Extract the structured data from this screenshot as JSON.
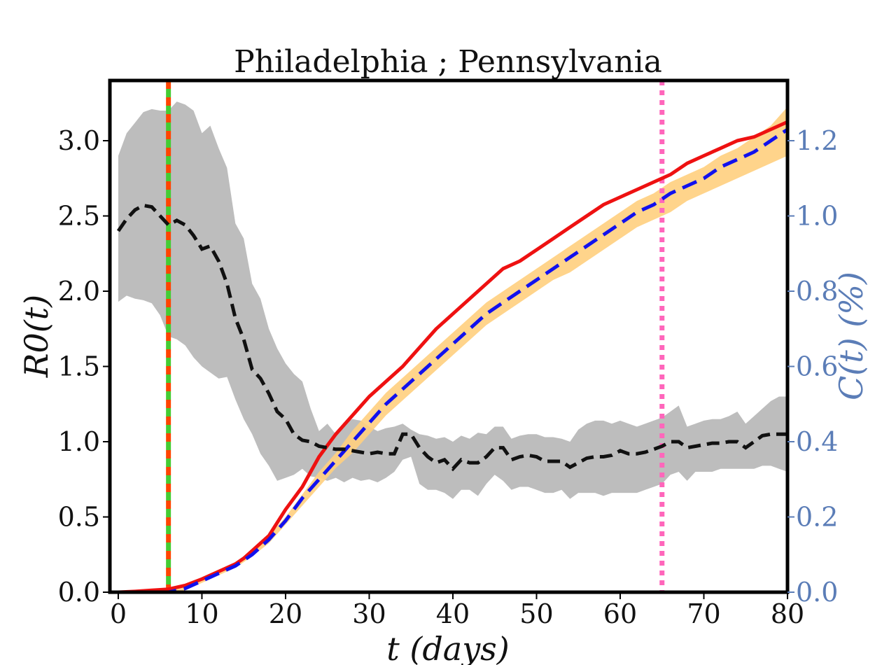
{
  "chart_data": {
    "type": "line",
    "title": "Philadelphia ; Pennsylvania",
    "xlabel": "t (days)",
    "ylabel_left": "R0(t)",
    "ylabel_right": "C(t) (%)",
    "xlim": [
      -1,
      80
    ],
    "ylim_left": [
      0,
      3.4
    ],
    "ylim_right": [
      0,
      1.36
    ],
    "x_ticks": [
      "0",
      "10",
      "20",
      "30",
      "40",
      "50",
      "60",
      "70",
      "80"
    ],
    "y_ticks_left": [
      "0.0",
      "0.5",
      "1.0",
      "1.5",
      "2.0",
      "2.5",
      "3.0"
    ],
    "y_ticks_right": [
      "0.0",
      "0.2",
      "0.4",
      "0.6",
      "0.8",
      "1.0",
      "1.2"
    ],
    "grid": false,
    "vertical_lines": [
      {
        "x": 6,
        "colors": [
          "#ff4400",
          "#44cc33"
        ],
        "style": "dotted"
      },
      {
        "x": 65,
        "colors": [
          "#ff66bb"
        ],
        "style": "dotted"
      }
    ],
    "series": [
      {
        "axis": "left",
        "style": "dashed",
        "color": "#111111",
        "band_color": "#bdbdbd",
        "x": [
          0,
          1,
          2,
          3,
          4,
          5,
          6,
          7,
          8,
          9,
          10,
          11,
          12,
          13,
          14,
          15,
          16,
          17,
          18,
          19,
          20,
          21,
          22,
          23,
          24,
          25,
          26,
          27,
          28,
          29,
          30,
          31,
          32,
          33,
          34,
          35,
          36,
          37,
          38,
          39,
          40,
          41,
          42,
          43,
          44,
          45,
          46,
          47,
          48,
          49,
          50,
          51,
          52,
          53,
          54,
          55,
          56,
          57,
          58,
          59,
          60,
          61,
          62,
          63,
          64,
          65,
          66,
          67,
          68,
          69,
          70,
          71,
          72,
          73,
          74,
          75,
          76,
          77,
          78,
          79,
          80
        ],
        "y": [
          2.4,
          2.48,
          2.54,
          2.57,
          2.56,
          2.5,
          2.44,
          2.47,
          2.44,
          2.37,
          2.28,
          2.3,
          2.2,
          2.05,
          1.82,
          1.68,
          1.48,
          1.42,
          1.32,
          1.2,
          1.15,
          1.05,
          1.01,
          1.0,
          0.97,
          0.96,
          0.95,
          0.95,
          0.94,
          0.93,
          0.92,
          0.93,
          0.92,
          0.92,
          1.05,
          1.05,
          0.96,
          0.9,
          0.86,
          0.88,
          0.82,
          0.88,
          0.86,
          0.86,
          0.9,
          0.96,
          0.96,
          0.88,
          0.9,
          0.91,
          0.9,
          0.87,
          0.87,
          0.87,
          0.83,
          0.86,
          0.89,
          0.9,
          0.9,
          0.91,
          0.94,
          0.92,
          0.92,
          0.93,
          0.95,
          0.97,
          1.0,
          1.0,
          0.96,
          0.97,
          0.98,
          0.99,
          0.99,
          1.0,
          1.0,
          0.96,
          1.0,
          1.04,
          1.05,
          1.05,
          1.05
        ],
        "upper": [
          2.9,
          3.05,
          3.12,
          3.19,
          3.21,
          3.2,
          3.2,
          3.26,
          3.24,
          3.2,
          3.05,
          3.1,
          2.95,
          2.82,
          2.45,
          2.35,
          2.05,
          1.95,
          1.75,
          1.62,
          1.52,
          1.45,
          1.4,
          1.22,
          1.07,
          1.12,
          1.05,
          1.12,
          1.15,
          1.14,
          1.1,
          1.07,
          1.09,
          1.1,
          1.12,
          1.08,
          1.05,
          1.04,
          1.02,
          1.03,
          1.0,
          1.04,
          1.02,
          1.06,
          1.05,
          1.1,
          1.1,
          1.02,
          1.04,
          1.05,
          1.05,
          1.03,
          1.03,
          1.02,
          1.0,
          1.08,
          1.12,
          1.14,
          1.14,
          1.12,
          1.14,
          1.12,
          1.1,
          1.12,
          1.14,
          1.16,
          1.2,
          1.24,
          1.1,
          1.12,
          1.14,
          1.15,
          1.15,
          1.17,
          1.2,
          1.12,
          1.17,
          1.22,
          1.27,
          1.3,
          1.3
        ],
        "lower": [
          1.93,
          1.97,
          1.95,
          1.94,
          1.92,
          1.84,
          1.7,
          1.68,
          1.64,
          1.56,
          1.5,
          1.46,
          1.42,
          1.43,
          1.28,
          1.15,
          1.05,
          0.92,
          0.84,
          0.74,
          0.76,
          0.78,
          0.82,
          0.77,
          0.76,
          0.74,
          0.76,
          0.73,
          0.76,
          0.74,
          0.75,
          0.73,
          0.76,
          0.8,
          0.88,
          0.9,
          0.72,
          0.68,
          0.68,
          0.66,
          0.62,
          0.68,
          0.68,
          0.64,
          0.72,
          0.78,
          0.74,
          0.68,
          0.7,
          0.7,
          0.68,
          0.66,
          0.66,
          0.68,
          0.62,
          0.66,
          0.66,
          0.66,
          0.64,
          0.66,
          0.66,
          0.66,
          0.66,
          0.68,
          0.7,
          0.72,
          0.78,
          0.8,
          0.74,
          0.8,
          0.8,
          0.8,
          0.82,
          0.82,
          0.82,
          0.82,
          0.82,
          0.84,
          0.84,
          0.82,
          0.8
        ]
      },
      {
        "axis": "right",
        "style": "solid",
        "color": "#ee1111",
        "x": [
          0,
          2,
          4,
          6,
          8,
          10,
          12,
          14,
          15,
          16,
          17,
          18,
          20,
          22,
          24,
          25,
          26,
          28,
          30,
          32,
          34,
          36,
          38,
          40,
          42,
          44,
          46,
          48,
          50,
          52,
          54,
          56,
          58,
          60,
          62,
          64,
          66,
          68,
          70,
          72,
          74,
          76,
          78,
          80
        ],
        "y": [
          0.0,
          0.002,
          0.005,
          0.008,
          0.018,
          0.035,
          0.055,
          0.075,
          0.09,
          0.11,
          0.13,
          0.15,
          0.22,
          0.28,
          0.36,
          0.39,
          0.42,
          0.47,
          0.52,
          0.56,
          0.6,
          0.65,
          0.7,
          0.74,
          0.78,
          0.82,
          0.86,
          0.88,
          0.91,
          0.94,
          0.97,
          1.0,
          1.03,
          1.05,
          1.07,
          1.09,
          1.11,
          1.14,
          1.16,
          1.18,
          1.2,
          1.21,
          1.23,
          1.25
        ]
      },
      {
        "axis": "right",
        "style": "dashed",
        "color": "#1111ee",
        "band_color": "#ffcf7e",
        "x": [
          0,
          6,
          8,
          10,
          12,
          14,
          16,
          18,
          20,
          22,
          24,
          26,
          28,
          30,
          32,
          34,
          36,
          38,
          40,
          42,
          44,
          46,
          48,
          50,
          52,
          54,
          56,
          58,
          60,
          62,
          64,
          66,
          68,
          70,
          72,
          74,
          76,
          78,
          80
        ],
        "y": [
          -0.05,
          0.0,
          0.01,
          0.03,
          0.05,
          0.07,
          0.1,
          0.14,
          0.19,
          0.25,
          0.3,
          0.35,
          0.4,
          0.45,
          0.5,
          0.54,
          0.58,
          0.62,
          0.66,
          0.7,
          0.74,
          0.77,
          0.8,
          0.83,
          0.86,
          0.89,
          0.92,
          0.95,
          0.98,
          1.01,
          1.03,
          1.06,
          1.08,
          1.1,
          1.13,
          1.15,
          1.17,
          1.2,
          1.23
        ],
        "upper": [
          -0.04,
          0.005,
          0.015,
          0.035,
          0.055,
          0.075,
          0.105,
          0.15,
          0.2,
          0.26,
          0.32,
          0.37,
          0.43,
          0.48,
          0.53,
          0.57,
          0.61,
          0.65,
          0.69,
          0.73,
          0.77,
          0.8,
          0.83,
          0.86,
          0.89,
          0.92,
          0.95,
          0.98,
          1.01,
          1.04,
          1.06,
          1.09,
          1.11,
          1.13,
          1.16,
          1.18,
          1.21,
          1.24,
          1.29
        ],
        "lower": [
          -0.06,
          -0.005,
          0.005,
          0.025,
          0.045,
          0.065,
          0.095,
          0.13,
          0.18,
          0.23,
          0.28,
          0.33,
          0.37,
          0.42,
          0.47,
          0.51,
          0.55,
          0.59,
          0.63,
          0.67,
          0.71,
          0.74,
          0.77,
          0.8,
          0.83,
          0.85,
          0.88,
          0.91,
          0.94,
          0.97,
          0.99,
          1.01,
          1.04,
          1.06,
          1.08,
          1.1,
          1.12,
          1.14,
          1.16
        ]
      }
    ]
  }
}
